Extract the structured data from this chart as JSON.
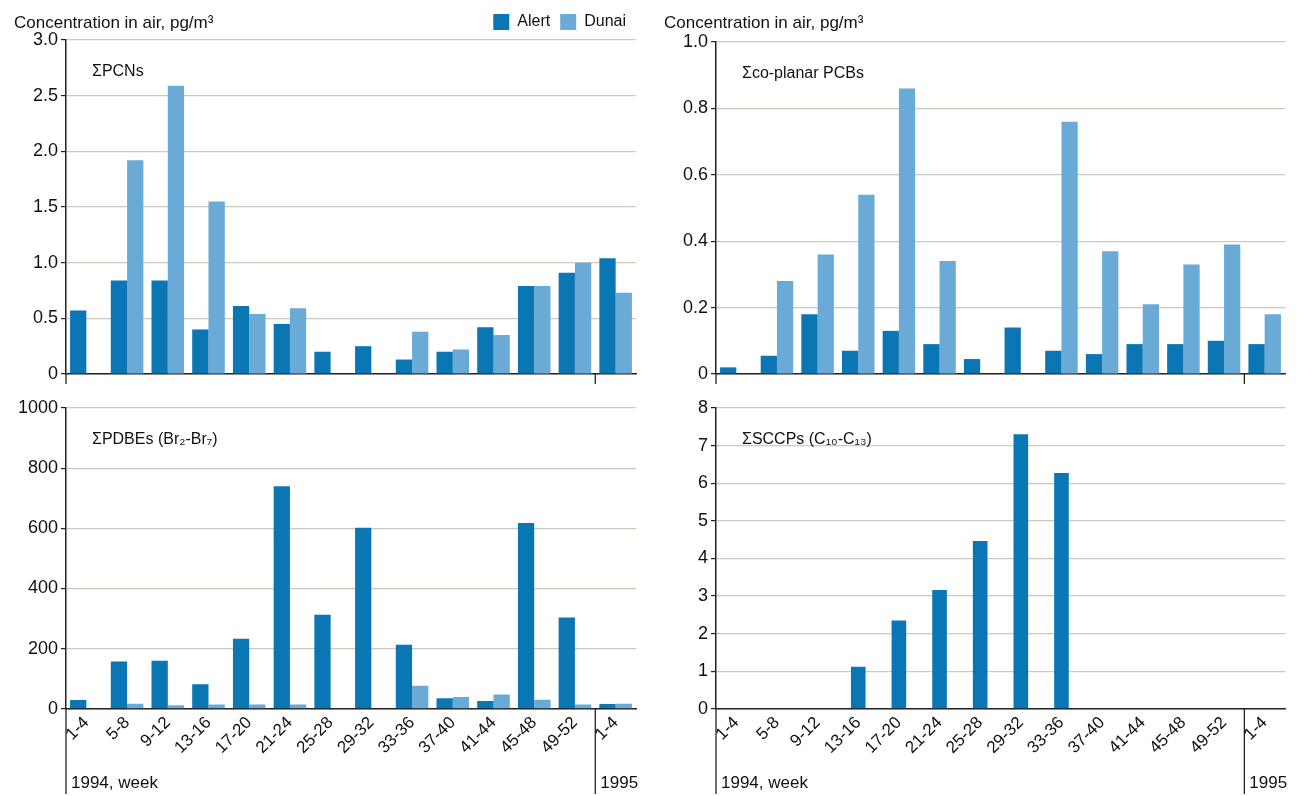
{
  "chart_data": [
    {
      "type": "bar",
      "title": "ΣPCNs",
      "ylabel": "Concentration in air, pg/m³",
      "categories": [
        null,
        null,
        null,
        null,
        null,
        null,
        null,
        null,
        null,
        null,
        null,
        null,
        null,
        null
      ],
      "series": [
        {
          "name": "Alert",
          "color": "#0a77b4",
          "values": [
            0.57,
            0.84,
            0.84,
            0.4,
            0.61,
            0.45,
            0.2,
            0.25,
            0.13,
            0.2,
            0.42,
            0.79,
            0.91,
            1.04
          ]
        },
        {
          "name": "Dunai",
          "color": "#6aaad6",
          "values": [
            null,
            1.92,
            2.59,
            1.55,
            0.54,
            0.59,
            null,
            null,
            0.38,
            0.22,
            0.35,
            0.79,
            1.0,
            0.73
          ]
        }
      ],
      "ylim": [
        0,
        3
      ],
      "yticks": [
        0,
        0.5,
        {
          "value": 1,
          "label": "1.0"
        },
        1.5,
        {
          "value": 2,
          "label": "2.0"
        },
        2.5,
        {
          "value": 3,
          "label": "3.0"
        }
      ],
      "grid": "y",
      "legend": "top right",
      "tick_labels": "y"
    },
    {
      "type": "bar",
      "title": "Σco-planar PCBs",
      "ylabel": "Concentration in air, pg/m³",
      "categories": [
        null,
        null,
        null,
        null,
        null,
        null,
        null,
        null,
        null,
        null,
        null,
        null,
        null,
        null
      ],
      "series": [
        {
          "color": "#0a77b4",
          "values": [
            0.02,
            0.055,
            0.18,
            0.07,
            0.13,
            0.09,
            0.045,
            0.14,
            0.07,
            0.06,
            0.09,
            0.09,
            0.1,
            0.09
          ]
        },
        {
          "color": "#6aaad6",
          "values": [
            null,
            0.28,
            0.36,
            0.54,
            0.86,
            0.34,
            null,
            null,
            0.76,
            0.37,
            0.21,
            0.33,
            0.39,
            0.18
          ]
        }
      ],
      "ylim": [
        0,
        1
      ],
      "yticks": [
        0,
        0.2,
        0.4,
        0.6,
        0.8,
        {
          "value": 1,
          "label": "1.0"
        }
      ],
      "grid": "y",
      "tick_labels": "y"
    },
    {
      "type": "bar",
      "title": "ΣPDBEs (Br₂-Br₇)",
      "categories": [
        "1-4",
        "5-8",
        "9-12",
        "13-16",
        "17-20",
        "21-24",
        "25-28",
        "29-32",
        "33-36",
        "37-40",
        "41-44",
        "45-48",
        "49-52",
        "1-4"
      ],
      "series": [
        {
          "color": "#0a77b4",
          "values": [
            29,
            157,
            160,
            82,
            233,
            740,
            313,
            602,
            213,
            35,
            26,
            618,
            304,
            16
          ]
        },
        {
          "color": "#6aaad6",
          "values": [
            null,
            17,
            12,
            14,
            14,
            14,
            null,
            null,
            77,
            39,
            48,
            30,
            14,
            17
          ]
        }
      ],
      "ylim": [
        0,
        1000
      ],
      "yticks": [
        0,
        200,
        400,
        600,
        800,
        1000
      ],
      "grid": "y",
      "annotations": [
        "1994, week",
        "1995"
      ]
    },
    {
      "type": "bar",
      "title": "ΣSCCPs (C₁₀-C₁₃)",
      "categories": [
        "1-4",
        "5-8",
        "9-12",
        "13-16",
        "17-20",
        "21-24",
        "25-28",
        "29-32",
        "33-36",
        "37-40",
        "41-44",
        "45-48",
        "49-52",
        "1-4"
      ],
      "series": [
        {
          "color": "#0a77b4",
          "values": [
            null,
            null,
            null,
            1.12,
            2.35,
            3.16,
            4.46,
            7.3,
            6.27,
            null,
            null,
            null,
            null,
            null
          ]
        }
      ],
      "ylim": [
        0,
        8
      ],
      "yticks": [
        0,
        1,
        2,
        3,
        4,
        5,
        6,
        7,
        8
      ],
      "grid": "y",
      "annotations": [
        "1994, week",
        "1995"
      ]
    }
  ]
}
